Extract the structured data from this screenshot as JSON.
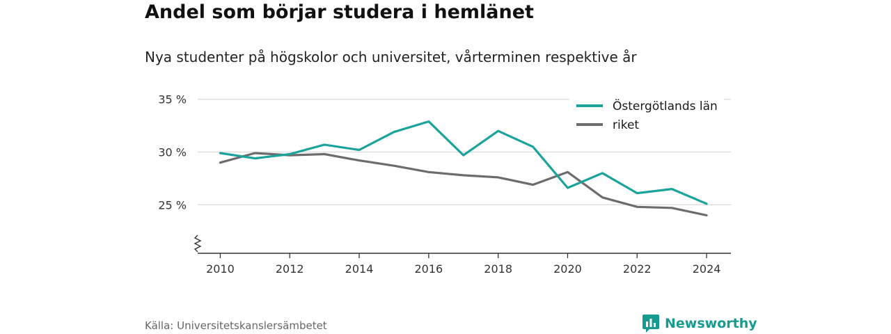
{
  "header": {
    "title": "Andel som börjar studera i hemlänet",
    "subtitle": "Nya studenter på högskolor och universitet, vårterminen respektive år"
  },
  "footer": {
    "source": "Källa: Universitetskanslersämbetet",
    "brand": "Newsworthy",
    "brand_icon": "bar-chart-speech-bubble-icon"
  },
  "chart_data": {
    "type": "line",
    "title": "Andel som börjar studera i hemlänet",
    "subtitle": "Nya studenter på högskolor och universitet, vårterminen respektive år",
    "x": [
      2010,
      2011,
      2012,
      2013,
      2014,
      2015,
      2016,
      2017,
      2018,
      2019,
      2020,
      2021,
      2022,
      2023,
      2024
    ],
    "x_ticks": [
      2010,
      2012,
      2014,
      2016,
      2018,
      2020,
      2022,
      2024
    ],
    "x_tick_labels": [
      "2010",
      "2012",
      "2014",
      "2016",
      "2018",
      "2020",
      "2022",
      "2024"
    ],
    "y_ticks": [
      25,
      30,
      35
    ],
    "y_tick_labels": [
      "25 %",
      "30 %",
      "35 %"
    ],
    "ylim": [
      20.4,
      36.5
    ],
    "y_axis_broken": true,
    "grid": "horizontal",
    "legend_position": "top-right",
    "series": [
      {
        "name": "Östergötlands län",
        "color": "#1aa39a",
        "values": [
          29.9,
          29.4,
          29.8,
          30.7,
          30.2,
          31.9,
          32.9,
          29.7,
          32.0,
          30.5,
          26.6,
          28.0,
          26.1,
          26.5,
          25.1
        ]
      },
      {
        "name": "riket",
        "color": "#6d6b6e",
        "values": [
          29.0,
          29.9,
          29.7,
          29.8,
          29.2,
          28.7,
          28.1,
          27.8,
          27.6,
          26.9,
          28.1,
          25.7,
          24.8,
          24.7,
          24.0
        ]
      }
    ]
  }
}
